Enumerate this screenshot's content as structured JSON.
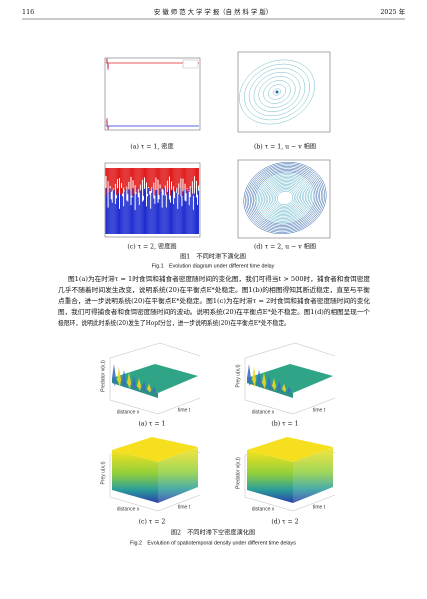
{
  "header": {
    "page": "116",
    "journal": "安 徽 师 范 大 学 学 报（自 然 科 学 版）",
    "year": "2025 年"
  },
  "figure1": {
    "panels": [
      {
        "caption": "(a) τ = 1, 密度"
      },
      {
        "caption": "(b) τ = 1, u − v 相图"
      },
      {
        "caption": "(c) τ = 2, 密度图"
      },
      {
        "caption": "(d) τ = 2, u − v 相图"
      }
    ],
    "caption_cn": "图1　不同时滞下演化图",
    "caption_en": "Fig.1　Evolution diagram under different time delay"
  },
  "body": {
    "lines": [
      "图1(a)为在时滞τ = 1时食饵和捕食者密度随时间的变化图，我们可得当t > 500时，捕食者和食饵密度",
      "几乎不随着时间发生改变，说明系统(20)在平衡点E*处稳定。图1(b)的相图得知其断近稳定，直至与平衡",
      "点重合，进一步说明系统(20)在平衡点E*处稳定。图1(c)为在时滞τ = 2时食饵和捕食者密度随时间的变化",
      "图，我们可得捕食者和食饵密度随时间的波动。说明系统(20)在平衡点E*处不稳定。图1(d)的相图呈现一个",
      "极限环，说明此时系统(20)发生了Hopf分岔，进一步说明系统(20)在平衡点E*处不稳定。"
    ]
  },
  "figure2": {
    "panels": [
      {
        "caption": "(a) τ = 1",
        "z_label": "Predator v(x,t)",
        "x_label": "distance x",
        "y_label": "time t"
      },
      {
        "caption": "(b) τ = 1",
        "z_label": "Prey u(x,t)",
        "x_label": "distance x",
        "y_label": "time t"
      },
      {
        "caption": "(c) τ = 2",
        "z_label": "Prey u(x,t)",
        "x_label": "distance x",
        "y_label": "time t"
      },
      {
        "caption": "(d) τ = 2",
        "z_label": "Predator v(x,t)",
        "x_label": "distance x",
        "y_label": "time t"
      }
    ],
    "caption_cn": "图2　不同时滞下空密度演化图",
    "caption_en": "Fig.2　Evolution of spatiotemporal density under different time delays"
  }
}
